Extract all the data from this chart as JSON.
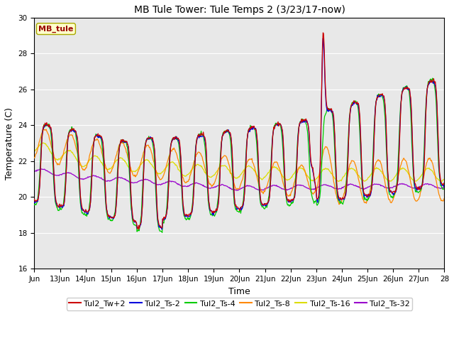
{
  "title": "MB Tule Tower: Tule Temps 2 (3/23/17-now)",
  "xlabel": "Time",
  "ylabel": "Temperature (C)",
  "ylim": [
    16,
    30
  ],
  "yticks": [
    16,
    18,
    20,
    22,
    24,
    26,
    28,
    30
  ],
  "xtick_positions": [
    0,
    1,
    2,
    3,
    4,
    5,
    6,
    7,
    8,
    9,
    10,
    11,
    12,
    13,
    14,
    15,
    16
  ],
  "xtick_labels": [
    "Jun",
    "13Jun",
    "14Jun",
    "15Jun",
    "16Jun",
    "17Jun",
    "18Jun",
    "19Jun",
    "20Jun",
    "21Jun",
    "22Jun",
    "23Jun",
    "24Jun",
    "25Jun",
    "26Jun",
    "27Jun",
    "28"
  ],
  "legend_labels": [
    "Tul2_Tw+2",
    "Tul2_Ts-2",
    "Tul2_Ts-4",
    "Tul2_Ts-8",
    "Tul2_Ts-16",
    "Tul2_Ts-32"
  ],
  "line_colors": [
    "#cc0000",
    "#0000dd",
    "#00cc00",
    "#ff8800",
    "#dddd00",
    "#9900cc"
  ],
  "bg_color": "#e8e8e8",
  "annotation_text": "MB_tule",
  "annotation_color": "#990000",
  "annotation_bg": "#ffffcc",
  "annotation_border": "#aaaa00",
  "figsize": [
    6.4,
    4.8
  ],
  "dpi": 100
}
